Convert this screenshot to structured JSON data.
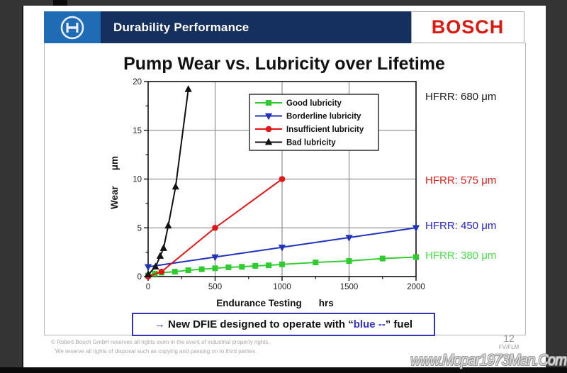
{
  "header": {
    "title": "Durability Performance",
    "brand": "BOSCH",
    "brand_color": "#da1a11",
    "logo_icon": "bosch-armature-icon",
    "logo_bg": "#1f6bb4",
    "bar_bg": "#16305e"
  },
  "slide": {
    "title": "Pump Wear vs. Lubricity over Lifetime",
    "hfrr_labels": [
      {
        "text": "HFRR: 680 μm",
        "color": "#1a1a1a"
      },
      {
        "text": "HFRR: 575 μm",
        "color": "#e31e1e"
      },
      {
        "text": "HFRR: 450 μm",
        "color": "#2525cc"
      },
      {
        "text": "HFRR: 380 μm",
        "color": "#4ade4a"
      }
    ],
    "banner": {
      "arrow": "→",
      "prefix": " New DFIE designed to operate with “",
      "highlight": "blue --",
      "suffix": "” fuel",
      "highlight_color": "#3333cc",
      "border_color": "#3434b4"
    },
    "footer": {
      "copyright1": "© Robert Bosch GmbH reserves all rights even in the event of industrial property rights.",
      "copyright2": "We reserve all rights of disposal such as copying and passing on to third parties.",
      "page_number": "12",
      "dept": "FV/FLM"
    },
    "watermark": "www.Mopar1973Man.Com"
  },
  "chart_data": {
    "type": "line",
    "title": "Pump Wear vs. Lubricity over Lifetime",
    "xlabel": "Endurance Testing",
    "xlabel_unit": "hrs",
    "ylabel": "Wear",
    "ylabel_unit": "μm",
    "xlim": [
      0,
      2000
    ],
    "ylim": [
      0,
      20
    ],
    "x_ticks": [
      0,
      500,
      1000,
      1500,
      2000
    ],
    "x_minor_ticks": [
      250,
      750,
      1250,
      1750
    ],
    "y_ticks": [
      0,
      5,
      10,
      15,
      20
    ],
    "y_minor_ticks": [
      2.5,
      7.5,
      12.5,
      17.5
    ],
    "grid": true,
    "grid_color": "#7a7a7a",
    "legend_position": "top-center-inside",
    "series": [
      {
        "name": "Good lubricity",
        "color": "#2ecc2e",
        "marker": "square",
        "points": [
          [
            0,
            0.1
          ],
          [
            50,
            0.3
          ],
          [
            100,
            0.4
          ],
          [
            200,
            0.5
          ],
          [
            300,
            0.65
          ],
          [
            400,
            0.75
          ],
          [
            500,
            0.85
          ],
          [
            600,
            0.95
          ],
          [
            700,
            1.0
          ],
          [
            800,
            1.1
          ],
          [
            900,
            1.15
          ],
          [
            1000,
            1.25
          ],
          [
            1250,
            1.45
          ],
          [
            1500,
            1.6
          ],
          [
            1750,
            1.85
          ],
          [
            2000,
            2.0
          ]
        ]
      },
      {
        "name": "Borderline lubricity",
        "color": "#2233bb",
        "marker": "triangle-down",
        "points": [
          [
            0,
            1
          ],
          [
            500,
            2
          ],
          [
            1000,
            3
          ],
          [
            1500,
            4
          ],
          [
            2000,
            5
          ]
        ]
      },
      {
        "name": "Insufficient lubricity",
        "color": "#e01515",
        "marker": "circle",
        "points": [
          [
            0,
            0
          ],
          [
            100,
            0.5
          ],
          [
            500,
            5
          ],
          [
            1000,
            10
          ]
        ]
      },
      {
        "name": "Bad lubricity",
        "color": "#111111",
        "marker": "triangle-up",
        "points": [
          [
            0,
            0.2
          ],
          [
            55,
            1
          ],
          [
            90,
            2.1
          ],
          [
            115,
            2.9
          ],
          [
            150,
            5.2
          ],
          [
            205,
            9.2
          ],
          [
            300,
            19.2
          ]
        ]
      }
    ]
  }
}
